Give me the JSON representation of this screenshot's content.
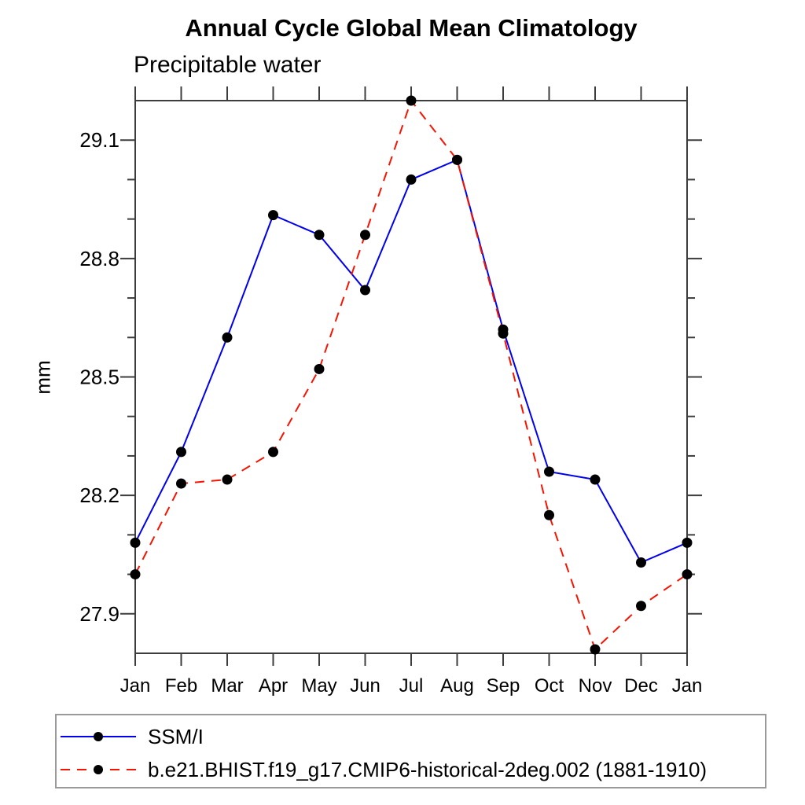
{
  "chart_data": {
    "type": "line",
    "title": "Annual Cycle Global Mean Climatology",
    "subtitle": "Precipitable water",
    "ylabel": "mm",
    "xlabel": "",
    "categories": [
      "Jan",
      "Feb",
      "Mar",
      "Apr",
      "May",
      "Jun",
      "Jul",
      "Aug",
      "Sep",
      "Oct",
      "Nov",
      "Dec",
      "Jan"
    ],
    "ylim": [
      27.8,
      29.2
    ],
    "ytick_labels": [
      "27.9",
      "28.2",
      "28.5",
      "28.8",
      "29.1"
    ],
    "y_minor_step": 0.1,
    "grid": "off",
    "legend_position": "bottom",
    "series": [
      {
        "name": "SSM/I",
        "color": "#0000ee",
        "style": "solid",
        "marker": "filled-circle",
        "values": [
          28.08,
          28.31,
          28.6,
          28.91,
          28.86,
          28.72,
          29.0,
          29.05,
          28.62,
          28.26,
          28.24,
          28.03,
          28.08
        ]
      },
      {
        "name": "b.e21.BHIST.f19_g17.CMIP6-historical-2deg.002 (1881-1910)",
        "color": "#f61300",
        "style": "dashed",
        "marker": "filled-circle",
        "values": [
          28.0,
          28.23,
          28.24,
          28.31,
          28.52,
          28.86,
          29.2,
          29.05,
          28.61,
          28.15,
          27.81,
          27.92,
          28.0
        ]
      }
    ]
  },
  "colors": {
    "frame": "#3d3d3d",
    "marker": "#000000",
    "text": "#000000",
    "legend_border": "#9a9a9a",
    "background": "#ffffff"
  }
}
